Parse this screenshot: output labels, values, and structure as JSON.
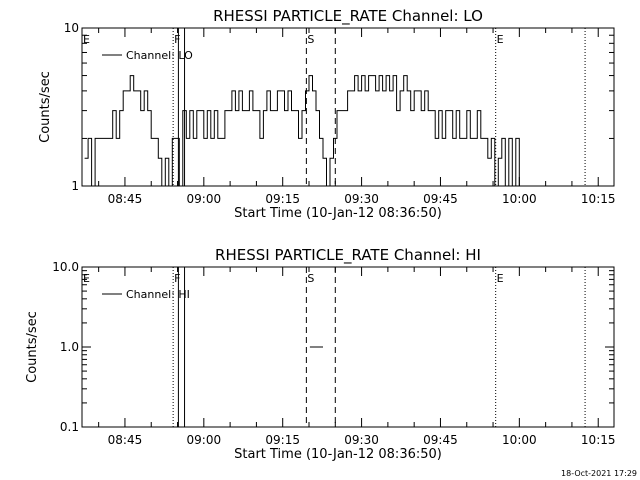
{
  "footer_timestamp": "18-Oct-2021 17:29",
  "chart_data": [
    {
      "type": "line",
      "title": "RHESSI PARTICLE_RATE Channel: LO",
      "xlabel": "Start Time (10-Jan-12 08:36:50)",
      "ylabel": "Counts/sec",
      "yscale": "log",
      "ylim": [
        1,
        10
      ],
      "xlim": [
        "08:36:50",
        "10:18:00"
      ],
      "y_tick_labels": [
        "1",
        "10"
      ],
      "x_tick_labels": [
        "08:45",
        "09:00",
        "09:15",
        "09:30",
        "09:45",
        "10:00",
        "10:15"
      ],
      "legend": {
        "placement": "top-left",
        "entries": [
          "Channel: LO"
        ]
      },
      "markers": [
        {
          "label": "E",
          "time": "08:36:50",
          "style": "dotted"
        },
        {
          "label": "F",
          "time": "08:54:10",
          "style": "dotted"
        },
        {
          "label": "",
          "time": "08:55:10",
          "style": "solid"
        },
        {
          "label": "",
          "time": "08:56:20",
          "style": "solid"
        },
        {
          "label": "S",
          "time": "09:19:30",
          "style": "dashed"
        },
        {
          "label": "",
          "time": "09:25:00",
          "style": "dashed"
        },
        {
          "label": "E",
          "time": "09:55:30",
          "style": "dotted"
        },
        {
          "label": "",
          "time": "10:12:30",
          "style": "dotted"
        }
      ],
      "series": [
        {
          "name": "Channel: LO",
          "segments": [
            {
              "x": [
                "08:37:20",
                "08:38:00",
                "08:38:40",
                "08:39:20",
                "08:40:00",
                "08:40:40",
                "08:41:20",
                "08:42:00",
                "08:42:40",
                "08:43:20",
                "08:44:00",
                "08:44:40",
                "08:45:20",
                "08:46:00",
                "08:46:40",
                "08:47:20",
                "08:48:00",
                "08:48:40",
                "08:49:20",
                "08:50:00",
                "08:50:40",
                "08:51:20",
                "08:52:00",
                "08:52:40",
                "08:53:20",
                "08:54:00",
                "08:54:40",
                "08:55:20",
                "08:56:00",
                "08:56:40",
                "08:57:20",
                "08:58:00",
                "08:58:40",
                "08:59:20",
                "09:00:00",
                "09:00:40",
                "09:01:20",
                "09:02:00",
                "09:02:40",
                "09:03:20",
                "09:04:00",
                "09:04:40",
                "09:05:20",
                "09:06:00",
                "09:06:40",
                "09:07:20",
                "09:08:00",
                "09:08:40",
                "09:09:20",
                "09:10:00",
                "09:10:40",
                "09:11:20",
                "09:12:00",
                "09:12:40",
                "09:13:20",
                "09:14:00",
                "09:14:40",
                "09:15:20",
                "09:16:00",
                "09:16:40",
                "09:17:20",
                "09:18:00",
                "09:18:40",
                "09:19:20",
                "09:20:00",
                "09:20:40",
                "09:21:20",
                "09:22:00",
                "09:22:40",
                "09:23:20",
                "09:24:00",
                "09:24:40",
                "09:25:20",
                "09:26:00",
                "09:26:40",
                "09:27:20",
                "09:28:00",
                "09:28:40",
                "09:29:20",
                "09:30:00",
                "09:30:40",
                "09:31:20",
                "09:32:00",
                "09:32:40",
                "09:33:20",
                "09:34:00",
                "09:34:40",
                "09:35:20",
                "09:36:00",
                "09:36:40",
                "09:37:20",
                "09:38:00",
                "09:38:40",
                "09:39:20",
                "09:40:00",
                "09:40:40",
                "09:41:20",
                "09:42:00",
                "09:42:40",
                "09:43:20",
                "09:44:00",
                "09:44:40",
                "09:45:20",
                "09:46:00",
                "09:46:40",
                "09:47:20",
                "09:48:00",
                "09:48:40",
                "09:49:20",
                "09:50:00",
                "09:50:40",
                "09:51:20",
                "09:52:00",
                "09:52:40",
                "09:53:20",
                "09:54:00",
                "09:54:40",
                "09:55:20",
                "09:56:00",
                "09:56:40",
                "09:57:20",
                "09:58:00",
                "09:58:40",
                "09:59:20",
                "10:00:00",
                "10:00:40"
              ],
              "y": [
                1.5,
                2,
                1,
                2,
                2,
                2,
                2,
                2,
                3,
                2,
                3,
                4,
                4,
                5,
                4,
                4,
                3,
                4,
                3,
                2,
                2,
                1.5,
                1,
                1.5,
                1,
                2,
                2,
                1,
                3,
                2,
                3,
                2,
                3,
                3,
                2,
                3,
                2,
                3,
                2,
                2,
                3,
                3,
                4,
                3,
                4,
                3,
                3,
                4,
                3,
                3,
                2,
                3,
                4,
                3,
                3,
                4,
                4,
                3,
                4,
                3,
                3,
                2,
                3,
                4,
                5,
                4,
                3,
                2,
                1.5,
                1,
                1.5,
                2,
                3,
                3,
                3,
                4,
                4,
                5,
                4,
                5,
                4,
                5,
                5,
                4,
                5,
                4,
                5,
                4,
                5,
                3,
                4,
                5,
                4,
                3,
                4,
                4,
                3,
                4,
                3,
                3,
                2,
                3,
                2,
                3,
                3,
                2,
                3,
                2,
                2,
                3,
                2,
                2,
                3,
                2,
                2,
                1.5,
                2,
                1,
                1.5,
                2,
                1,
                2,
                1,
                2,
                1,
                1
              ]
            }
          ]
        }
      ]
    },
    {
      "type": "line",
      "title": "RHESSI PARTICLE_RATE Channel: HI",
      "xlabel": "Start Time (10-Jan-12 08:36:50)",
      "ylabel": "Counts/sec",
      "yscale": "log",
      "ylim": [
        0.1,
        10
      ],
      "xlim": [
        "08:36:50",
        "10:18:00"
      ],
      "y_tick_labels": [
        "0.1",
        "1.0",
        "10.0"
      ],
      "x_tick_labels": [
        "08:45",
        "09:00",
        "09:15",
        "09:30",
        "09:45",
        "10:00",
        "10:15"
      ],
      "legend": {
        "placement": "top-left",
        "entries": [
          "Channel: HI"
        ]
      },
      "markers": [
        {
          "label": "E",
          "time": "08:36:50",
          "style": "dotted"
        },
        {
          "label": "F",
          "time": "08:54:10",
          "style": "dotted"
        },
        {
          "label": "",
          "time": "08:55:10",
          "style": "solid"
        },
        {
          "label": "",
          "time": "08:56:20",
          "style": "solid"
        },
        {
          "label": "S",
          "time": "09:19:30",
          "style": "dashed"
        },
        {
          "label": "",
          "time": "09:25:00",
          "style": "dashed"
        },
        {
          "label": "E",
          "time": "09:55:30",
          "style": "dotted"
        },
        {
          "label": "",
          "time": "10:12:30",
          "style": "dotted"
        }
      ],
      "series": [
        {
          "name": "Channel: HI",
          "segments": [
            {
              "x": [
                "09:20:10",
                "09:22:40"
              ],
              "y": [
                1,
                1
              ]
            }
          ]
        }
      ]
    }
  ]
}
